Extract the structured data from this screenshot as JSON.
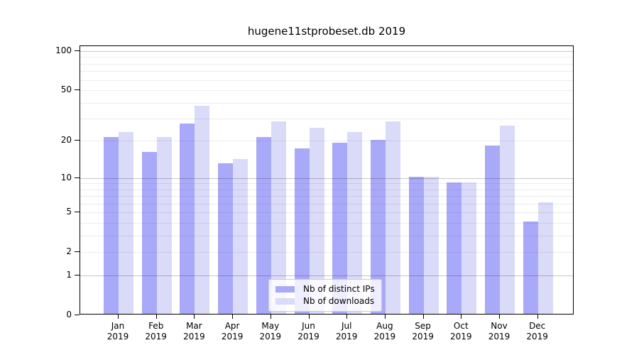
{
  "chart_data": {
    "type": "bar",
    "title": "hugene11stprobeset.db 2019",
    "categories": [
      "Jan",
      "Feb",
      "Mar",
      "Apr",
      "May",
      "Jun",
      "Jul",
      "Aug",
      "Sep",
      "Oct",
      "Nov",
      "Dec"
    ],
    "category_year": "2019",
    "series": [
      {
        "name": "Nb of distinct IPs",
        "color": "#a9a9f9",
        "values": [
          21,
          16,
          27,
          13,
          21,
          17,
          19,
          20,
          10,
          9,
          18,
          4
        ]
      },
      {
        "name": "Nb of downloads",
        "color": "#dadaf9",
        "values": [
          23,
          21,
          37,
          14,
          28,
          25,
          23,
          28,
          10,
          9,
          26,
          6
        ]
      }
    ],
    "y_scale": "log1p",
    "ylim": [
      0,
      110
    ],
    "y_ticks": [
      100,
      50,
      20,
      10,
      5,
      2,
      1,
      0
    ],
    "grid_major": [
      1,
      10,
      100
    ],
    "grid_minor": [
      2,
      3,
      4,
      5,
      6,
      7,
      8,
      9,
      20,
      30,
      40,
      50,
      60,
      70,
      80,
      90
    ],
    "legend_position": "lower-center",
    "frame_color": "#000000",
    "grid_major_color": "rgba(0,0,0,0.22)",
    "grid_minor_color": "rgba(0,0,0,0.07)"
  }
}
